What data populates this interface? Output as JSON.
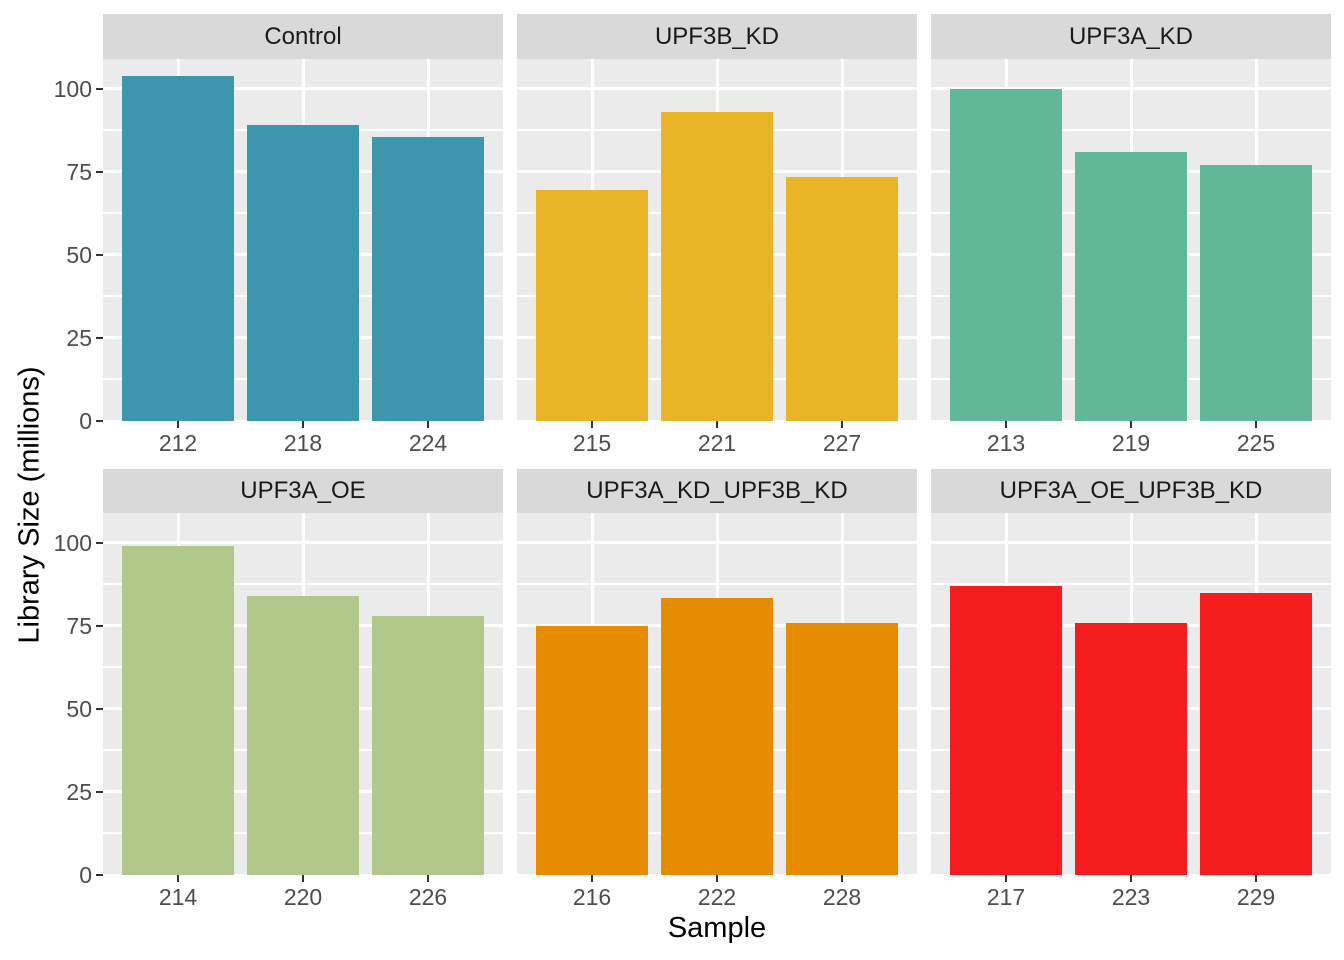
{
  "figure": {
    "background": "#FFFFFF",
    "panel_bg": "#EBEBEB",
    "strip_bg": "#D9D9D9",
    "grid_color": "#FFFFFF",
    "tick_text_color": "#4D4D4D",
    "axis_title_color": "#000000",
    "tick_mark_color": "#333333"
  },
  "chart_data": {
    "type": "bar",
    "title": "",
    "xlabel": "Sample",
    "ylabel": "Library Size (millions)",
    "ylim": [
      0,
      109
    ],
    "yticks": [
      0,
      25,
      50,
      75,
      100
    ],
    "yticks_minor": [
      12.5,
      37.5,
      62.5,
      87.5
    ],
    "grid": true,
    "legend": "none",
    "facet_layout": {
      "rows": 2,
      "cols": 3
    },
    "facets": [
      {
        "label": "Control",
        "color": "#3C96AE",
        "categories": [
          "212",
          "218",
          "224"
        ],
        "values": [
          104,
          89,
          85.5
        ]
      },
      {
        "label": "UPF3B_KD",
        "color": "#E9B425",
        "categories": [
          "215",
          "221",
          "227"
        ],
        "values": [
          69.5,
          93,
          73.5
        ]
      },
      {
        "label": "UPF3A_KD",
        "color": "#61B899",
        "categories": [
          "213",
          "219",
          "225"
        ],
        "values": [
          100,
          81,
          77
        ]
      },
      {
        "label": "UPF3A_OE",
        "color": "#B2C88B",
        "categories": [
          "214",
          "220",
          "226"
        ],
        "values": [
          99,
          84,
          78
        ]
      },
      {
        "label": "UPF3A_KD_UPF3B_KD",
        "color": "#E78B00",
        "categories": [
          "216",
          "222",
          "228"
        ],
        "values": [
          75,
          83.5,
          76
        ]
      },
      {
        "label": "UPF3A_OE_UPF3B_KD",
        "color": "#F41C1D",
        "categories": [
          "217",
          "223",
          "229"
        ],
        "values": [
          87,
          76,
          85
        ]
      }
    ]
  }
}
